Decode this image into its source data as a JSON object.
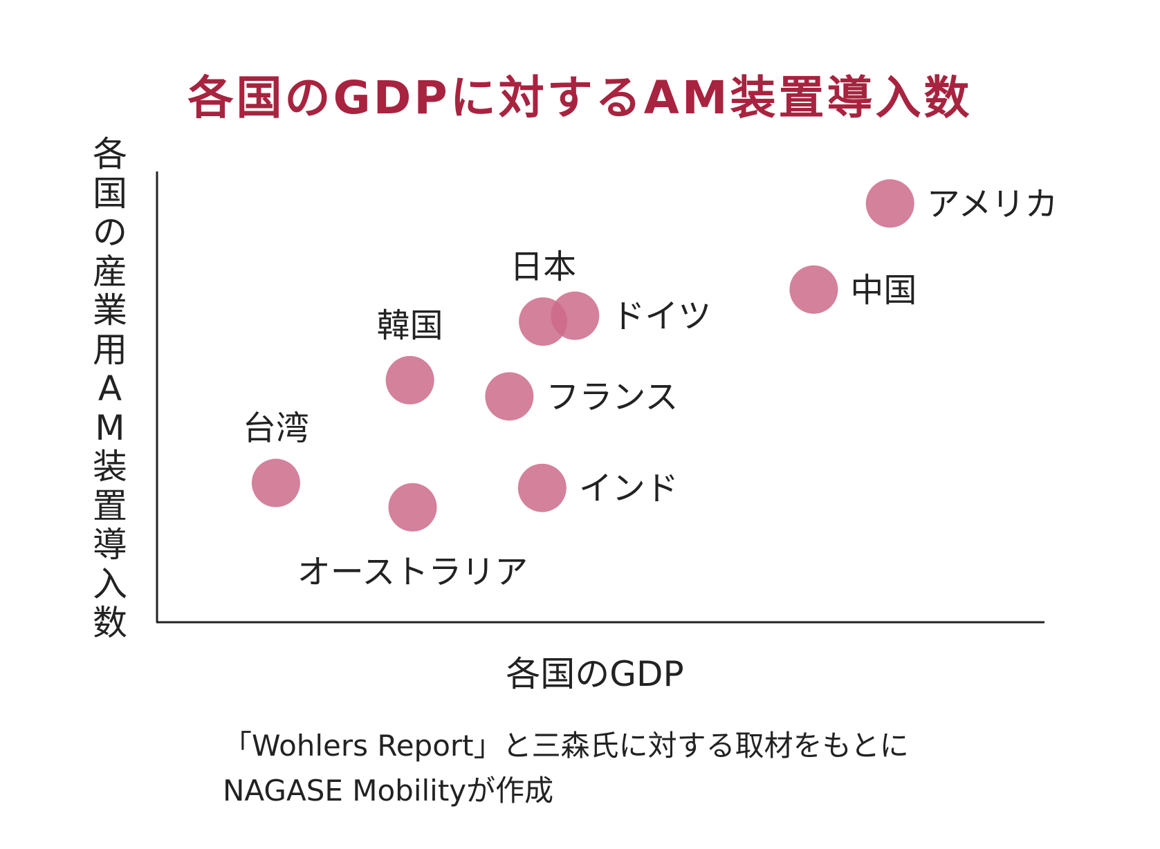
{
  "chart_data": {
    "type": "scatter",
    "title": "各国のGDPに対するAM装置導入数",
    "xlabel": "各国のGDP",
    "ylabel": "各国の産業用AM装置導入数",
    "grid": false,
    "legend": "none",
    "colors": {
      "title": "#a8233f",
      "point": "#cd6b8a",
      "text": "#222222",
      "axis": "#222222"
    },
    "xlim": [
      0,
      100
    ],
    "ylim": [
      0,
      100
    ],
    "points": [
      {
        "name": "アメリカ",
        "x": 82.6,
        "y": 92.9,
        "label_position": "right"
      },
      {
        "name": "中国",
        "x": 74.0,
        "y": 73.8,
        "label_position": "right"
      },
      {
        "name": "日本",
        "x": 43.5,
        "y": 66.7,
        "label_position": "above"
      },
      {
        "name": "ドイツ",
        "x": 47.1,
        "y": 68.0,
        "label_position": "right"
      },
      {
        "name": "韓国",
        "x": 28.5,
        "y": 53.7,
        "label_position": "above"
      },
      {
        "name": "フランス",
        "x": 39.7,
        "y": 50.1,
        "label_position": "right"
      },
      {
        "name": "台湾",
        "x": 13.4,
        "y": 30.9,
        "label_position": "above"
      },
      {
        "name": "インド",
        "x": 43.4,
        "y": 29.8,
        "label_position": "right"
      },
      {
        "name": "オーストラリア",
        "x": 28.8,
        "y": 25.5,
        "label_position": "below"
      }
    ]
  },
  "source": {
    "line1": "「Wohlers Report」と三森氏に対する取材をもとに",
    "line2": "NAGASE Mobilityが作成"
  }
}
